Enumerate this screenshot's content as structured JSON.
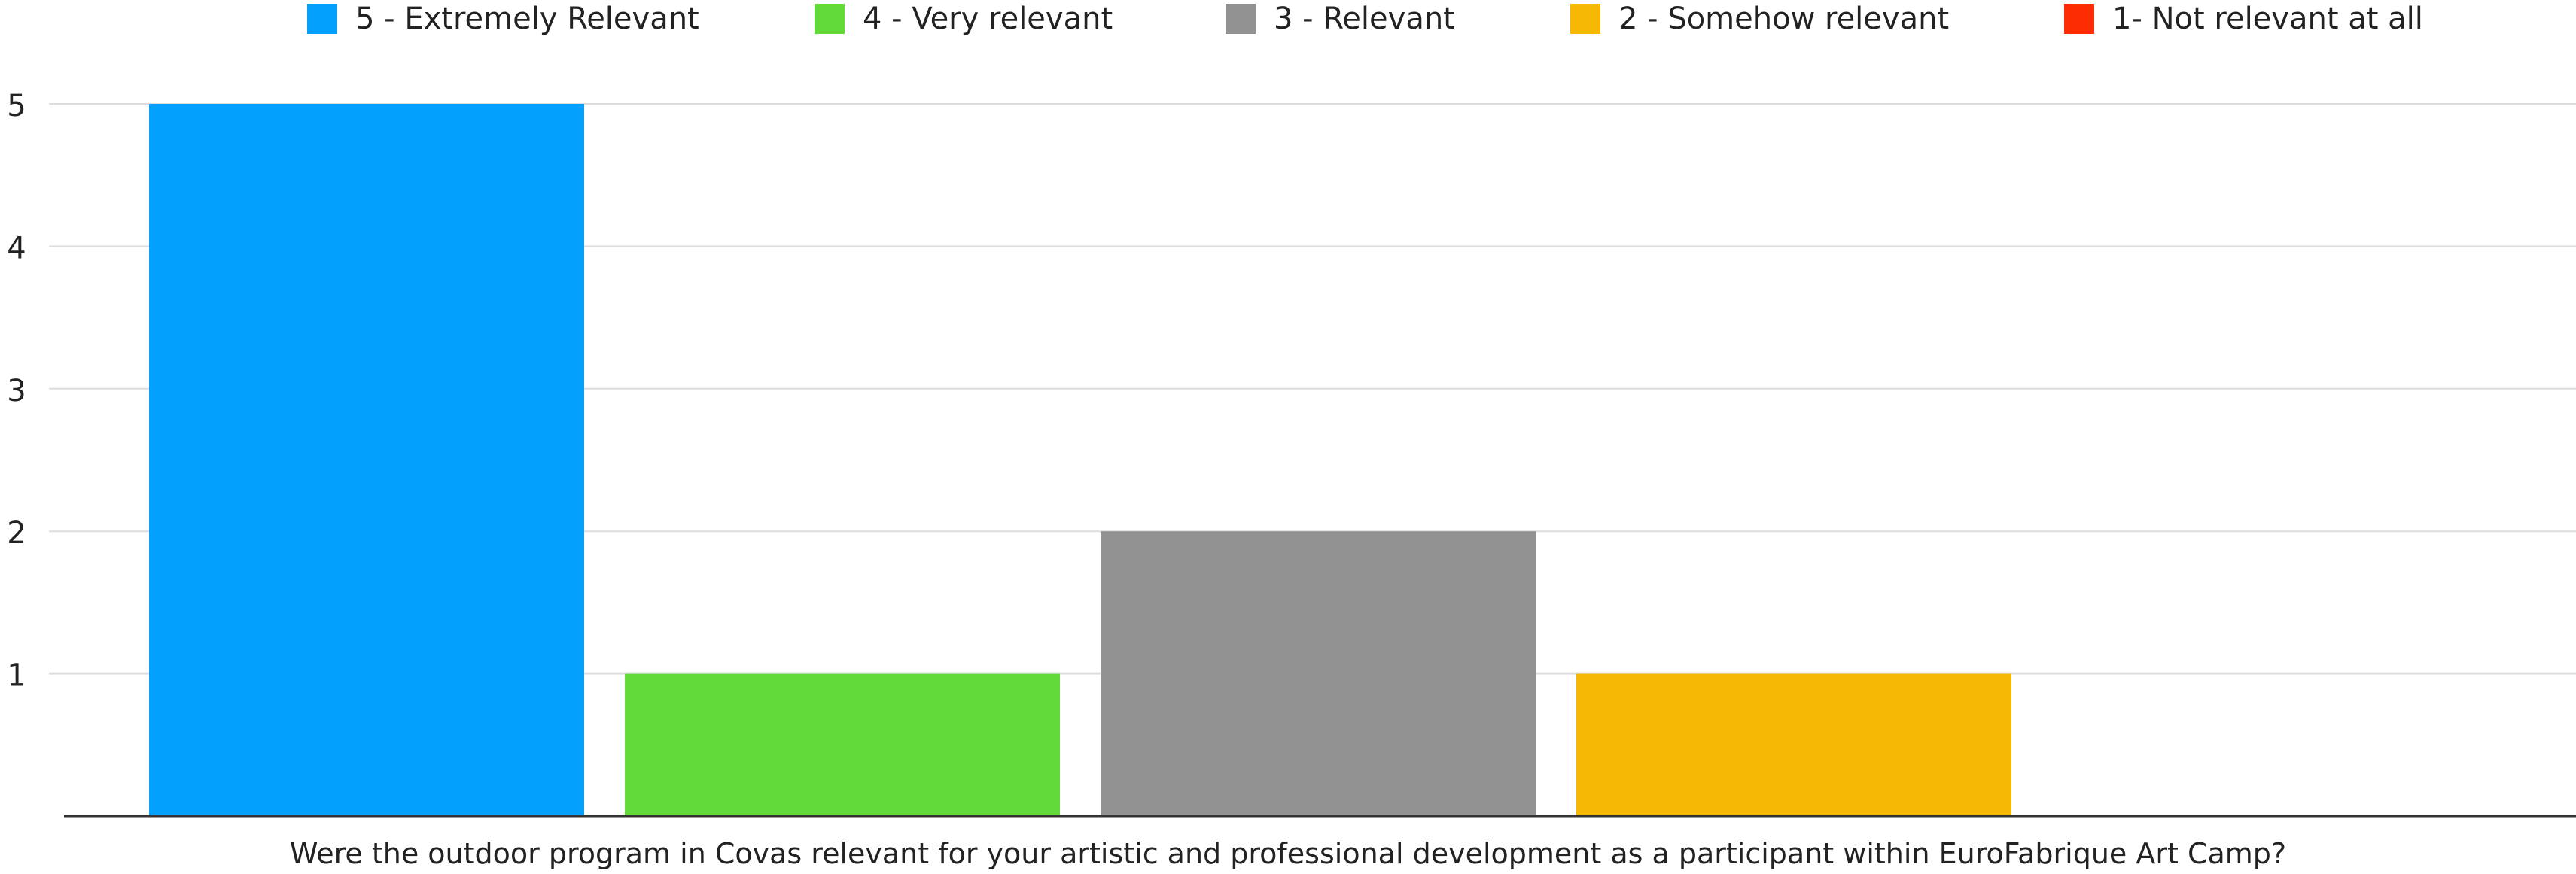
{
  "chart_data": {
    "type": "bar",
    "title": "",
    "xlabel": "Were the outdoor program in Covas relevant for your artistic and professional development as a participant within EuroFabrique Art Camp?",
    "ylabel": "",
    "ylim": [
      0,
      5
    ],
    "yticks": [
      1,
      2,
      3,
      4,
      5
    ],
    "grid": true,
    "legend_position": "top",
    "series": [
      {
        "name": "5 - Extremely Relevant",
        "value": 5,
        "color": "#03a0fd"
      },
      {
        "name": "4 - Very relevant",
        "value": 1,
        "color": "#62da39"
      },
      {
        "name": "3 - Relevant",
        "value": 2,
        "color": "#929292"
      },
      {
        "name": "2 - Somehow relevant",
        "value": 1,
        "color": "#f6b804"
      },
      {
        "name": "1- Not relevant at all",
        "value": 0,
        "color": "#fe2c02"
      }
    ],
    "colors": {
      "grid": "#dddddd",
      "axis": "#333333",
      "text": "#222222"
    }
  }
}
